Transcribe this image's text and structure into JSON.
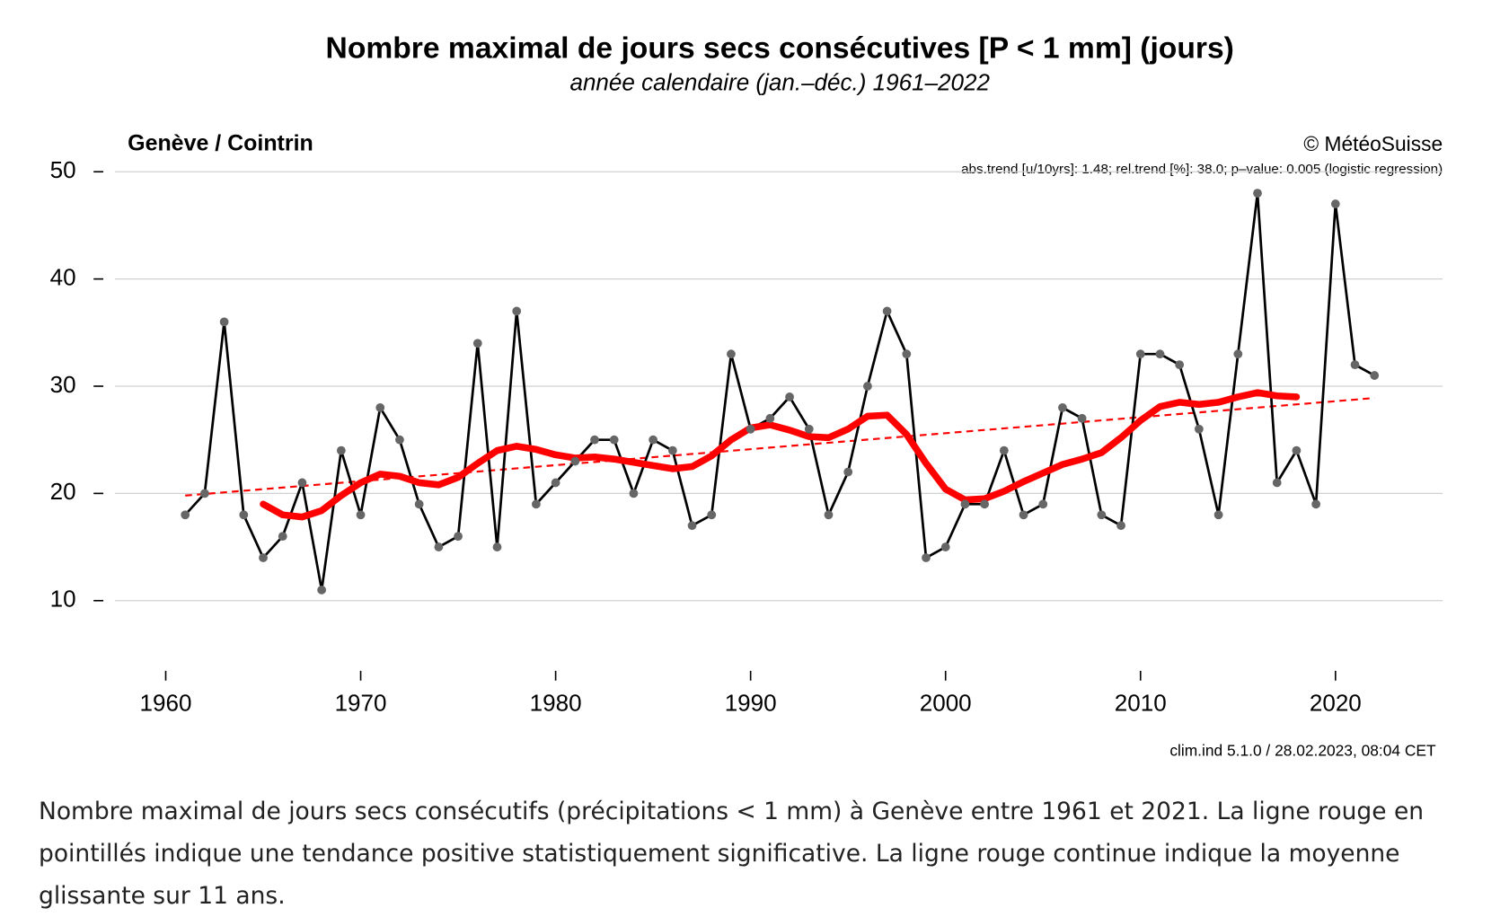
{
  "chart_data": {
    "type": "line",
    "title": "Nombre maximal de jours secs consécutives [P < 1 mm] (jours)",
    "subtitle": "année calendaire (jan.–déc.) 1961–2022",
    "station": "Genève / Cointrin",
    "credit": "© MétéoSuisse",
    "trend_note": "abs.trend [u/10yrs]:  1.48; rel.trend [%]:  38.0; p–value: 0.005 (logistic regression)",
    "footer": "clim.ind 5.1.0 / 28.02.2023, 08:04 CET",
    "caption": "Nombre maximal de jours secs consécutifs (précipitations < 1 mm) à Genève entre 1961 et 2021. La ligne rouge en pointillés indique une tendance positive statistiquement significative. La ligne rouge continue indique la moyenne glissante sur 11 ans.",
    "x": [
      1961,
      1962,
      1963,
      1964,
      1965,
      1966,
      1967,
      1968,
      1969,
      1970,
      1971,
      1972,
      1973,
      1974,
      1975,
      1976,
      1977,
      1978,
      1979,
      1980,
      1981,
      1982,
      1983,
      1984,
      1985,
      1986,
      1987,
      1988,
      1989,
      1990,
      1991,
      1992,
      1993,
      1994,
      1995,
      1996,
      1997,
      1998,
      1999,
      2000,
      2001,
      2002,
      2003,
      2004,
      2005,
      2006,
      2007,
      2008,
      2009,
      2010,
      2011,
      2012,
      2013,
      2014,
      2015,
      2016,
      2017,
      2018,
      2019,
      2020,
      2021,
      2022
    ],
    "series": [
      {
        "color": "#000000",
        "marker_color": "#666666",
        "values": [
          18,
          20,
          36,
          18,
          14,
          16,
          21,
          11,
          24,
          18,
          28,
          25,
          19,
          15,
          16,
          34,
          15,
          37,
          19,
          21,
          23,
          25,
          25,
          20,
          25,
          24,
          17,
          18,
          33,
          26,
          27,
          29,
          26,
          18,
          22,
          30,
          37,
          33,
          14,
          15,
          19,
          19,
          24,
          18,
          19,
          28,
          27,
          18,
          17,
          33,
          33,
          32,
          26,
          18,
          33,
          48,
          21,
          24,
          19,
          47,
          32,
          31
        ]
      },
      {
        "color": "#ff0000",
        "values": [
          null,
          null,
          null,
          null,
          19,
          18,
          17.8,
          18.4,
          19.8,
          21,
          21.8,
          21.6,
          21,
          20.8,
          21.5,
          22.8,
          24,
          24.4,
          24.1,
          23.6,
          23.3,
          23.4,
          23.2,
          22.9,
          22.6,
          22.3,
          22.5,
          23.5,
          25,
          26.1,
          26.4,
          25.9,
          25.3,
          25.2,
          26,
          27.2,
          27.3,
          25.5,
          22.8,
          20.4,
          19.4,
          19.5,
          20.2,
          21.1,
          21.9,
          22.7,
          23.2,
          23.8,
          25.2,
          26.8,
          28.1,
          28.5,
          28.3,
          28.5,
          29,
          29.4,
          29.1,
          29,
          null,
          null,
          null,
          null
        ]
      }
    ],
    "trend": {
      "color": "#ff0000",
      "x": [
        1961,
        2022
      ],
      "values": [
        19.8,
        28.9
      ]
    },
    "xlim": [
      1957.4,
      2025.5
    ],
    "xticks": [
      1960,
      1970,
      1980,
      1990,
      2000,
      2010,
      2020
    ],
    "ylim": [
      4,
      50
    ],
    "yticks": [
      10,
      20,
      30,
      40,
      50
    ],
    "grid": true
  }
}
